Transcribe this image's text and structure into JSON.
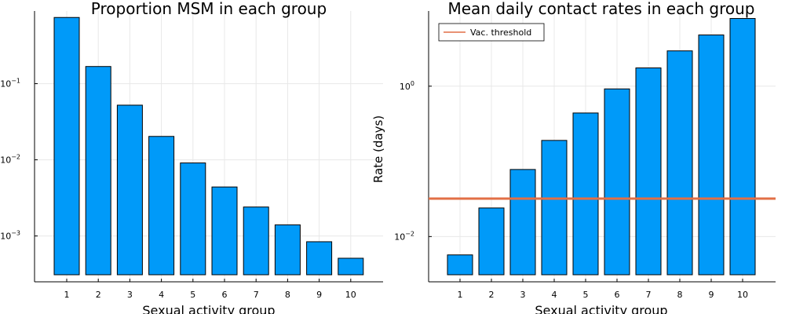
{
  "chart_data": [
    {
      "type": "bar",
      "title": "Proportion MSM in each group",
      "xlabel": "Sexual activity group",
      "ylabel": "",
      "yscale": "log",
      "ylim": [
        0.00025,
        0.9
      ],
      "yticks": [
        {
          "base": "10",
          "exp": "-3"
        },
        {
          "base": "10",
          "exp": "-2"
        },
        {
          "base": "10",
          "exp": "-1"
        }
      ],
      "categories": [
        "1",
        "2",
        "3",
        "4",
        "5",
        "6",
        "7",
        "8",
        "9",
        "10"
      ],
      "values": [
        0.74,
        0.168,
        0.0522,
        0.0203,
        0.0091,
        0.0044,
        0.0024,
        0.0014,
        0.00084,
        0.00051
      ],
      "bar_color": "#009af9",
      "grid": true
    },
    {
      "type": "bar",
      "title": "Mean daily contact rates in each group",
      "xlabel": "Sexual activity group",
      "ylabel": "Rate (days)",
      "yscale": "log",
      "ylim": [
        0.0025,
        10
      ],
      "yticks": [
        {
          "base": "10",
          "exp": "-2"
        },
        {
          "base": "10",
          "exp": "0"
        }
      ],
      "categories": [
        "1",
        "2",
        "3",
        "4",
        "5",
        "6",
        "7",
        "8",
        "9",
        "10"
      ],
      "values": [
        0.0057,
        0.024,
        0.078,
        0.19,
        0.44,
        0.92,
        1.75,
        2.95,
        4.8,
        7.95
      ],
      "bar_color": "#009af9",
      "grid": true,
      "hline": {
        "label": "Vac. threshold",
        "value": 0.032,
        "color": "#e26f46"
      },
      "legend_position": "top-left"
    }
  ]
}
